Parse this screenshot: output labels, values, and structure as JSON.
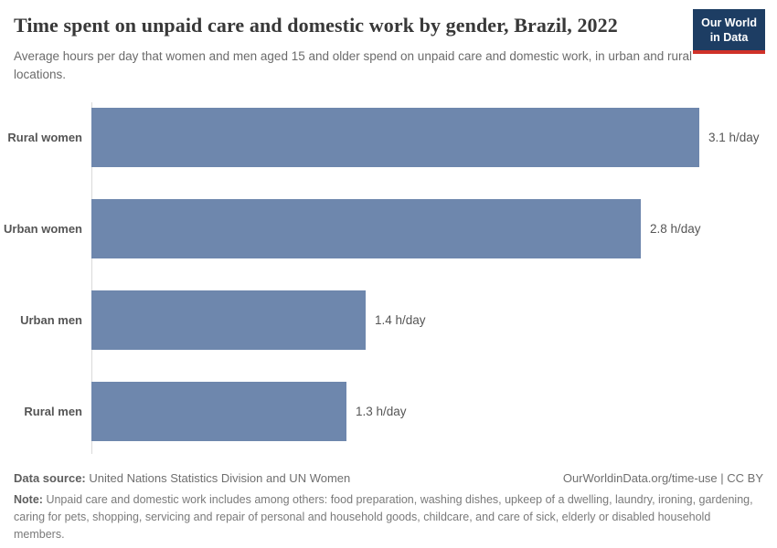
{
  "header": {
    "title": "Time spent on unpaid care and domestic work by gender, Brazil, 2022",
    "subtitle": "Average hours per day that women and men aged 15 and older spend on unpaid care and domestic work, in urban and rural locations.",
    "logo": {
      "line1": "Our World",
      "line2": "in Data"
    }
  },
  "chart_data": {
    "type": "bar",
    "orientation": "horizontal",
    "title": "Time spent on unpaid care and domestic work by gender, Brazil, 2022",
    "categories": [
      "Rural women",
      "Urban women",
      "Urban men",
      "Rural men"
    ],
    "values": [
      3.1,
      2.8,
      1.4,
      1.3
    ],
    "value_labels": [
      "3.1 h/day",
      "2.8 h/day",
      "1.4 h/day",
      "1.3 h/day"
    ],
    "unit": "h/day",
    "xlim": [
      0,
      3.1
    ],
    "grid": false,
    "legend": false,
    "bar_color": "#6e87ad"
  },
  "footer": {
    "data_source_label": "Data source:",
    "data_source_value": "United Nations Statistics Division and UN Women",
    "link": "OurWorldinData.org/time-use | CC BY",
    "note_label": "Note:",
    "note_text": "Unpaid care and domestic work includes among others: food preparation, washing dishes, upkeep of a dwelling, laundry, ironing, gardening, caring for pets, shopping, servicing and repair of personal and household goods, childcare, and care of sick, elderly or disabled household members."
  },
  "colors": {
    "bar": "#6e87ad",
    "logo_background": "#1d3d63",
    "logo_underline": "#cf3129",
    "title_text": "#383838",
    "axis_line": "#dadada"
  }
}
